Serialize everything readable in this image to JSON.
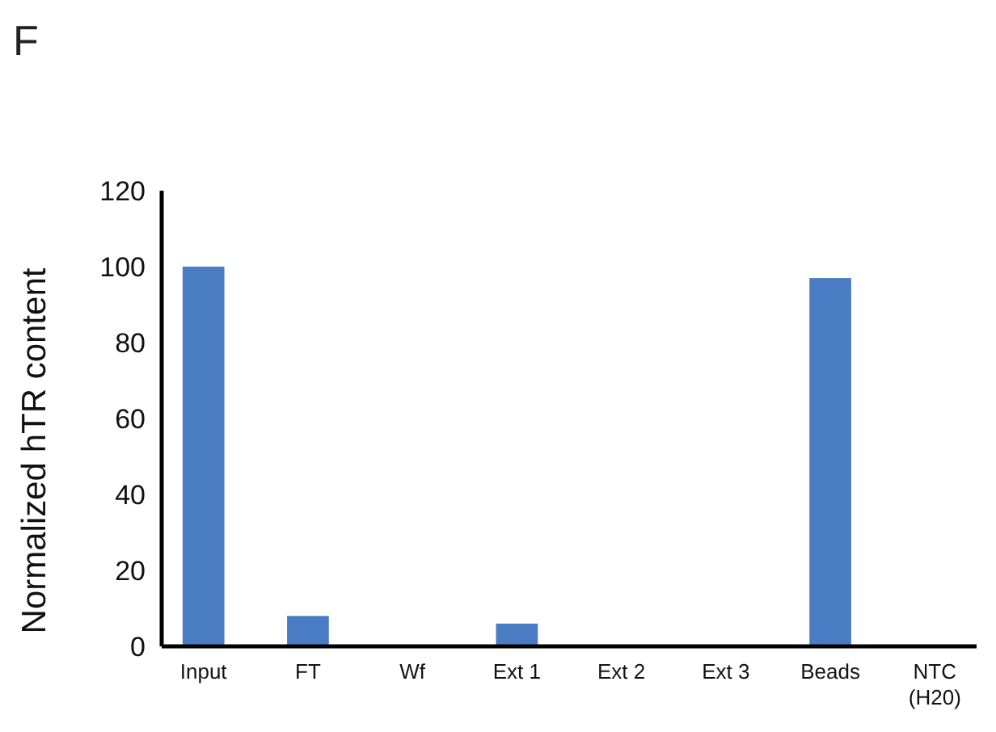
{
  "chart_data": {
    "type": "bar",
    "title": "F",
    "ylabel": "Normalized hTR content",
    "categories": [
      "Input",
      "FT",
      "Wf",
      "Ext 1",
      "Ext 2",
      "Ext 3",
      "Beads",
      "NTC (H20)"
    ],
    "values": [
      100,
      8,
      0,
      6,
      0,
      0,
      97,
      0
    ],
    "color": "#4a7cc4",
    "ylim": [
      0,
      120
    ],
    "yticks": [
      0,
      20,
      40,
      60,
      80,
      100,
      120
    ],
    "grid": false
  }
}
